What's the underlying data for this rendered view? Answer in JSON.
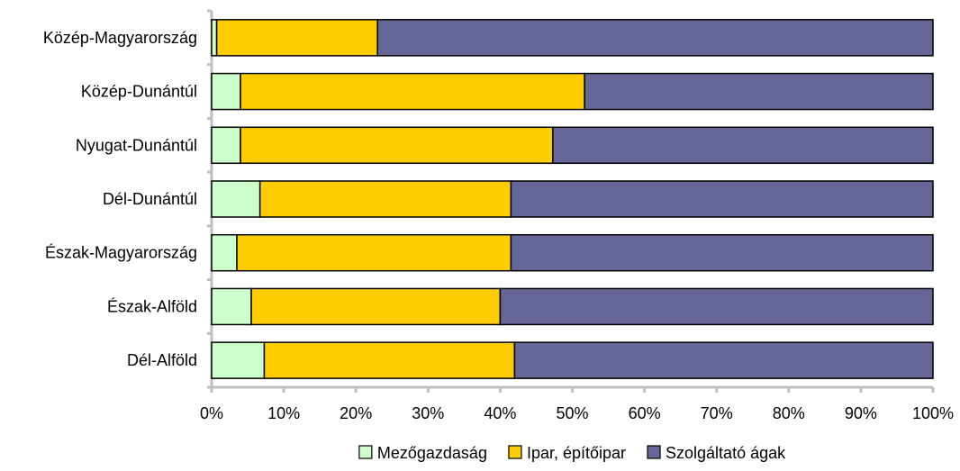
{
  "chart_data": {
    "type": "bar",
    "orientation": "horizontal",
    "stacked": true,
    "normalized": true,
    "categories": [
      "Közép-Magyarország",
      "Közép-Dunántúl",
      "Nyugat-Dunántúl",
      "Dél-Dunántúl",
      "Észak-Magyarország",
      "Észak-Alföld",
      "Dél-Alföld"
    ],
    "series": [
      {
        "name": "Mezőgazdaság",
        "color": "#ccffcc",
        "values": [
          0.7,
          4.0,
          4.0,
          6.7,
          3.5,
          5.5,
          7.3
        ]
      },
      {
        "name": "Ipar, építőipar",
        "color": "#ffcc00",
        "values": [
          22.3,
          47.7,
          43.3,
          34.8,
          38.0,
          34.5,
          34.7
        ]
      },
      {
        "name": "Szolgáltató ágak",
        "color": "#666699",
        "values": [
          77.0,
          48.3,
          52.7,
          58.5,
          58.5,
          60.0,
          58.0
        ]
      }
    ],
    "xlim": [
      0,
      100
    ],
    "xticks": [
      "0%",
      "10%",
      "20%",
      "30%",
      "40%",
      "50%",
      "60%",
      "70%",
      "80%",
      "90%",
      "100%"
    ],
    "title": "",
    "xlabel": "",
    "ylabel": "",
    "grid": false,
    "legend_position": "bottom"
  }
}
